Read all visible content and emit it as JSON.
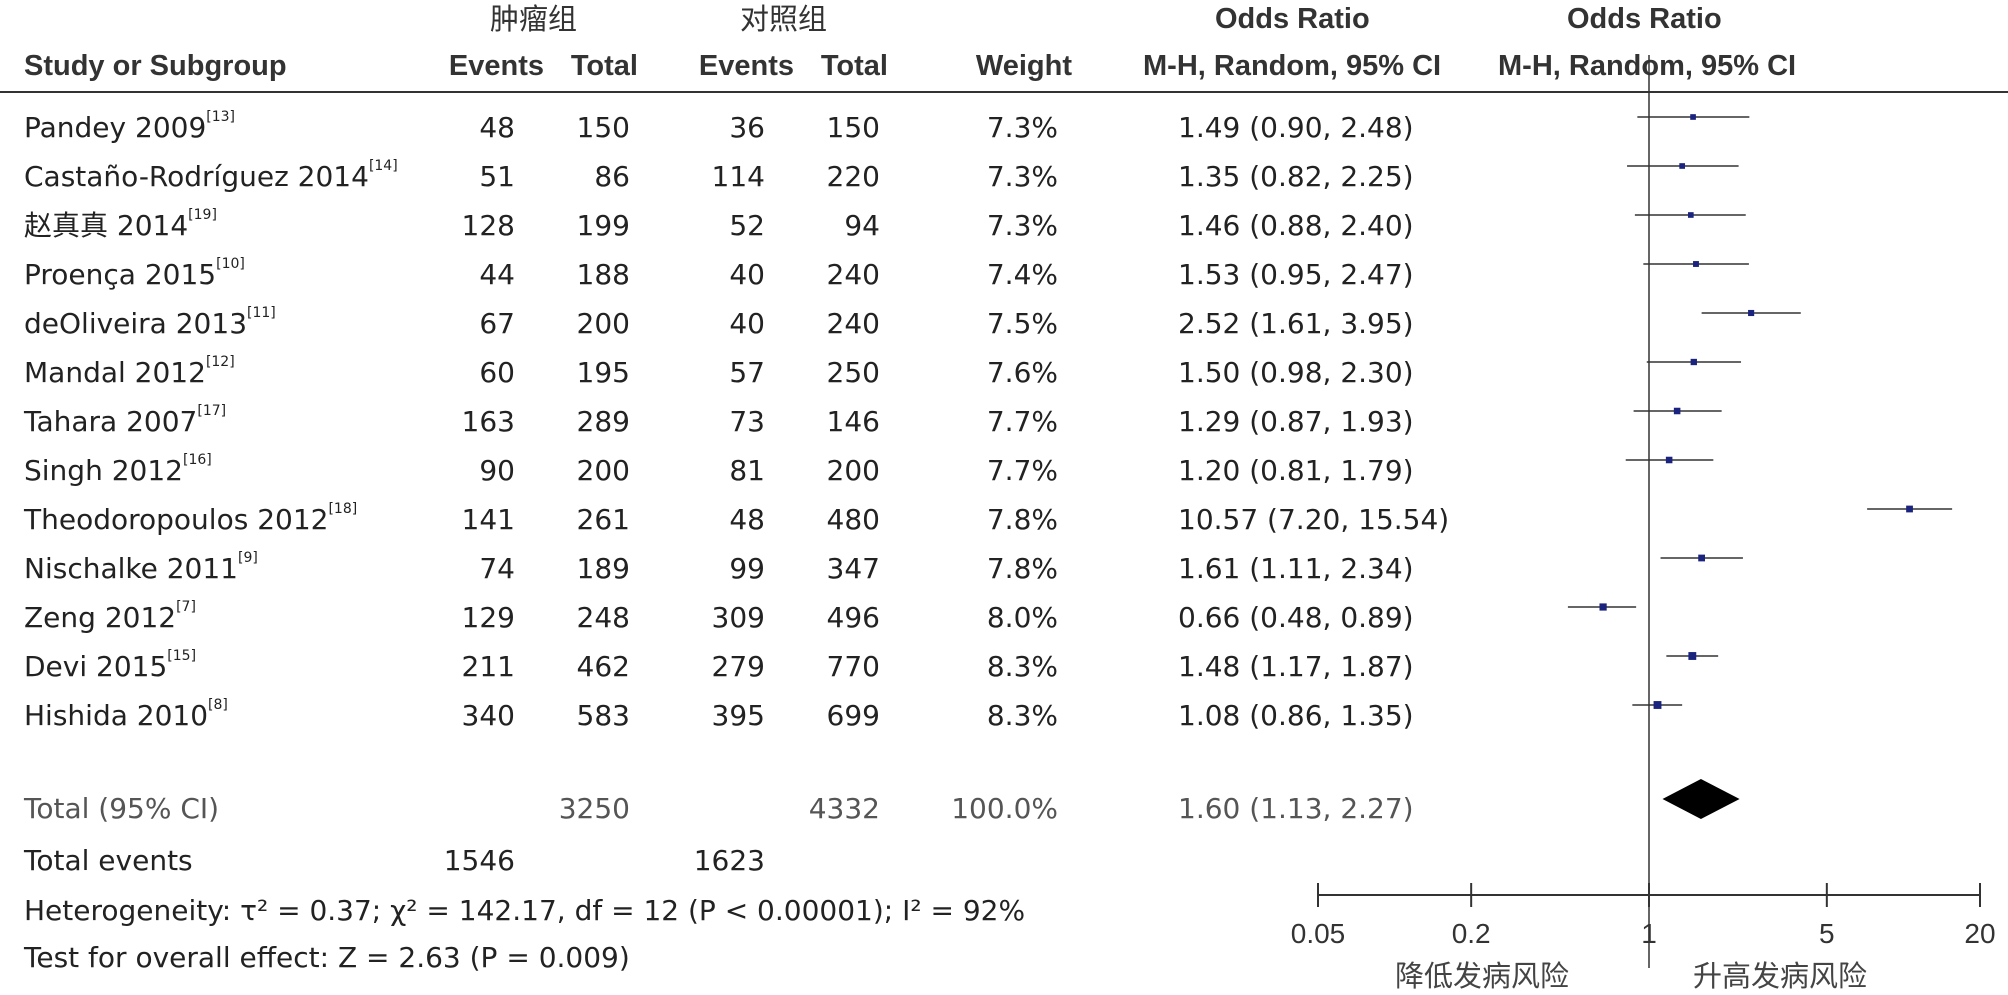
{
  "headers": {
    "tumor_group": "肿瘤组",
    "control_group": "对照组",
    "odds_ratio_left": "Odds Ratio",
    "odds_ratio_right": "Odds Ratio",
    "study": "Study or Subgroup",
    "events": "Events",
    "total": "Total",
    "weight": "Weight",
    "ci_left": "M-H, Random, 95% CI",
    "ci_right": "M-H, Random, 95% CI"
  },
  "studies": [
    {
      "name": "Pandey 2009",
      "ref": "[13]",
      "e1": "48",
      "t1": "150",
      "e2": "36",
      "t2": "150",
      "weight": "7.3%",
      "or_text": "1.49 (0.90, 2.48)"
    },
    {
      "name": "Castaño-Rodríguez 2014",
      "ref": "[14]",
      "e1": "51",
      "t1": "86",
      "e2": "114",
      "t2": "220",
      "weight": "7.3%",
      "or_text": "1.35 (0.82, 2.25)"
    },
    {
      "name": "赵真真 2014",
      "ref": "[19]",
      "e1": "128",
      "t1": "199",
      "e2": "52",
      "t2": "94",
      "weight": "7.3%",
      "or_text": "1.46 (0.88, 2.40)"
    },
    {
      "name": "Proença 2015",
      "ref": "[10]",
      "e1": "44",
      "t1": "188",
      "e2": "40",
      "t2": "240",
      "weight": "7.4%",
      "or_text": "1.53 (0.95, 2.47)"
    },
    {
      "name": "deOliveira 2013",
      "ref": "[11]",
      "e1": "67",
      "t1": "200",
      "e2": "40",
      "t2": "240",
      "weight": "7.5%",
      "or_text": "2.52 (1.61, 3.95)"
    },
    {
      "name": "Mandal 2012",
      "ref": "[12]",
      "e1": "60",
      "t1": "195",
      "e2": "57",
      "t2": "250",
      "weight": "7.6%",
      "or_text": "1.50 (0.98, 2.30)"
    },
    {
      "name": "Tahara 2007",
      "ref": "[17]",
      "e1": "163",
      "t1": "289",
      "e2": "73",
      "t2": "146",
      "weight": "7.7%",
      "or_text": "1.29 (0.87, 1.93)"
    },
    {
      "name": "Singh 2012",
      "ref": "[16]",
      "e1": "90",
      "t1": "200",
      "e2": "81",
      "t2": "200",
      "weight": "7.7%",
      "or_text": "1.20 (0.81, 1.79)"
    },
    {
      "name": "Theodoropoulos 2012",
      "ref": "[18]",
      "e1": "141",
      "t1": "261",
      "e2": "48",
      "t2": "480",
      "weight": "7.8%",
      "or_text": "10.57 (7.20, 15.54)"
    },
    {
      "name": "Nischalke 2011",
      "ref": "[9]",
      "e1": "74",
      "t1": "189",
      "e2": "99",
      "t2": "347",
      "weight": "7.8%",
      "or_text": "1.61 (1.11, 2.34)"
    },
    {
      "name": "Zeng 2012",
      "ref": "[7]",
      "e1": "129",
      "t1": "248",
      "e2": "309",
      "t2": "496",
      "weight": "8.0%",
      "or_text": "0.66 (0.48, 0.89)"
    },
    {
      "name": "Devi 2015",
      "ref": "[15]",
      "e1": "211",
      "t1": "462",
      "e2": "279",
      "t2": "770",
      "weight": "8.3%",
      "or_text": "1.48 (1.17, 1.87)"
    },
    {
      "name": "Hishida 2010",
      "ref": "[8]",
      "e1": "340",
      "t1": "583",
      "e2": "395",
      "t2": "699",
      "weight": "8.3%",
      "or_text": "1.08 (0.86, 1.35)"
    }
  ],
  "total": {
    "label": "Total (95% CI)",
    "t1": "3250",
    "t2": "4332",
    "weight": "100.0%",
    "or_text": "1.60 (1.13, 2.27)"
  },
  "total_events": {
    "label": "Total events",
    "e1": "1546",
    "e2": "1623"
  },
  "heterogeneity": "Heterogeneity: τ² = 0.37; χ² = 142.17, df = 12 (P < 0.00001); I² = 92%",
  "overall_effect": "Test for overall effect: Z = 2.63 (P = 0.009)",
  "favours_left": "降低发病风险",
  "favours_right": "升高发病风险",
  "chart_data": {
    "type": "forest",
    "scale": "log",
    "xlim": [
      0.05,
      20
    ],
    "reference_line": 1,
    "ticks": [
      0.05,
      0.2,
      1,
      5,
      20
    ],
    "tick_labels": [
      "0.05",
      "0.2",
      "1",
      "5",
      "20"
    ],
    "points": [
      {
        "study": "Pandey 2009",
        "or": 1.49,
        "lo": 0.9,
        "hi": 2.48,
        "weight": 7.3
      },
      {
        "study": "Castaño-Rodríguez 2014",
        "or": 1.35,
        "lo": 0.82,
        "hi": 2.25,
        "weight": 7.3
      },
      {
        "study": "赵真真 2014",
        "or": 1.46,
        "lo": 0.88,
        "hi": 2.4,
        "weight": 7.3
      },
      {
        "study": "Proença 2015",
        "or": 1.53,
        "lo": 0.95,
        "hi": 2.47,
        "weight": 7.4
      },
      {
        "study": "deOliveira 2013",
        "or": 2.52,
        "lo": 1.61,
        "hi": 3.95,
        "weight": 7.5
      },
      {
        "study": "Mandal 2012",
        "or": 1.5,
        "lo": 0.98,
        "hi": 2.3,
        "weight": 7.6
      },
      {
        "study": "Tahara 2007",
        "or": 1.29,
        "lo": 0.87,
        "hi": 1.93,
        "weight": 7.7
      },
      {
        "study": "Singh 2012",
        "or": 1.2,
        "lo": 0.81,
        "hi": 1.79,
        "weight": 7.7
      },
      {
        "study": "Theodoropoulos 2012",
        "or": 10.57,
        "lo": 7.2,
        "hi": 15.54,
        "weight": 7.8
      },
      {
        "study": "Nischalke 2011",
        "or": 1.61,
        "lo": 1.11,
        "hi": 2.34,
        "weight": 7.8
      },
      {
        "study": "Zeng 2012",
        "or": 0.66,
        "lo": 0.48,
        "hi": 0.89,
        "weight": 8.0
      },
      {
        "study": "Devi 2015",
        "or": 1.48,
        "lo": 1.17,
        "hi": 1.87,
        "weight": 8.3
      },
      {
        "study": "Hishida 2010",
        "or": 1.08,
        "lo": 0.86,
        "hi": 1.35,
        "weight": 8.3
      }
    ],
    "pooled": {
      "or": 1.6,
      "lo": 1.13,
      "hi": 2.27
    },
    "colors": {
      "point": "#1a237e",
      "line": "#333333",
      "diamond": "#000000"
    }
  }
}
